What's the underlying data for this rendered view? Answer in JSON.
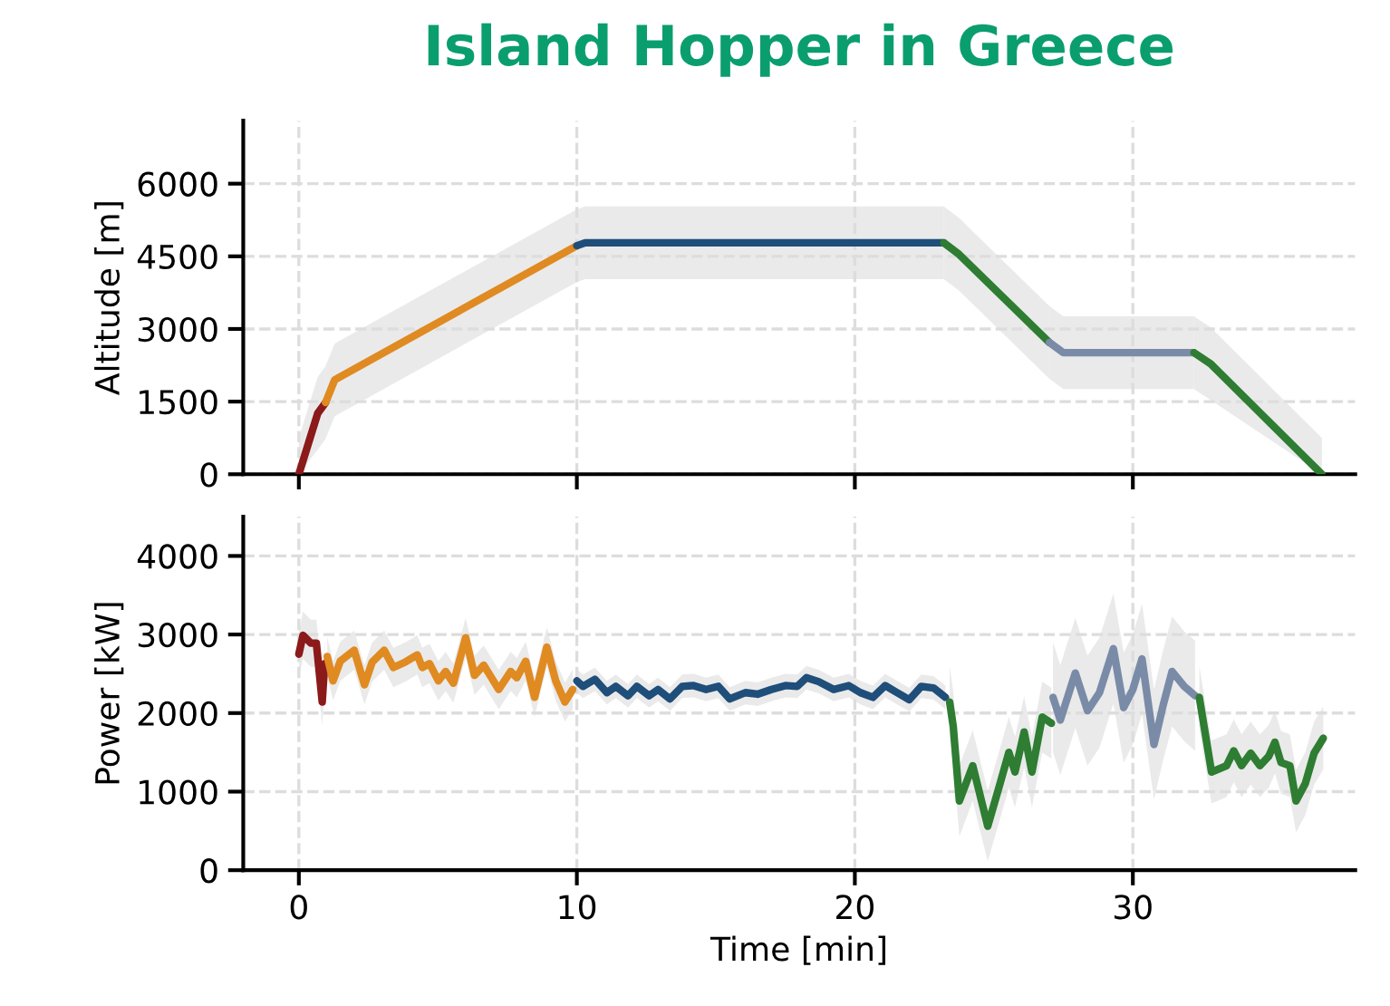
{
  "chart_data": [
    {
      "type": "line",
      "title": "Island Hopper in Greece",
      "ylabel": "Altitude [m]",
      "xlim": [
        -2,
        38
      ],
      "xticks": [
        0,
        10,
        20,
        30
      ],
      "ylim": [
        0,
        7300
      ],
      "yticks": [
        0,
        1500,
        3000,
        4500,
        6000
      ],
      "grid": true,
      "tick_labels": "y",
      "series": [
        {
          "color": "#8b1a1a",
          "x": [
            0,
            0.68,
            0.96
          ],
          "values": [
            0,
            1260,
            1480
          ],
          "lower": [
            0,
            510,
            730
          ],
          "upper": [
            750,
            2010,
            2230
          ]
        },
        {
          "color": "#e08a22",
          "x": [
            0.96,
            1.29,
            10
          ],
          "values": [
            1480,
            1950,
            4720
          ],
          "lower": [
            730,
            1200,
            3970
          ],
          "upper": [
            2230,
            2700,
            5470
          ]
        },
        {
          "color": "#1f4e7a",
          "x": [
            10,
            10.3,
            23.2
          ],
          "values": [
            4720,
            4780,
            4780
          ],
          "lower": [
            3970,
            4030,
            4030
          ],
          "upper": [
            5470,
            5530,
            5530
          ]
        },
        {
          "color": "#2e7d32",
          "x": [
            23.2,
            23.75,
            27.0
          ],
          "values": [
            4780,
            4540,
            2720
          ],
          "lower": [
            4030,
            3790,
            1970
          ],
          "upper": [
            5530,
            5290,
            3470
          ]
        },
        {
          "color": "#7a8ba8",
          "x": [
            27.0,
            27.5,
            32.2
          ],
          "values": [
            2720,
            2510,
            2510
          ],
          "lower": [
            1970,
            1760,
            1760
          ],
          "upper": [
            3470,
            3260,
            3260
          ]
        },
        {
          "color": "#2e7d32",
          "x": [
            32.2,
            32.8,
            36.8
          ],
          "values": [
            2510,
            2280,
            0
          ],
          "lower": [
            1760,
            1530,
            0
          ],
          "upper": [
            3260,
            3030,
            750
          ]
        }
      ]
    },
    {
      "type": "line",
      "xlabel": "Time [min]",
      "ylabel": "Power [kW]",
      "xlim": [
        -2,
        38
      ],
      "xticks": [
        0,
        10,
        20,
        30
      ],
      "ylim": [
        0,
        4500
      ],
      "yticks": [
        0,
        1000,
        2000,
        3000,
        4000
      ],
      "grid": true,
      "series": [
        {
          "color": "#8b1a1a",
          "x": [
            0,
            0.15,
            0.43,
            0.63,
            0.84,
            0.93
          ],
          "values": [
            2750,
            2990,
            2890,
            2890,
            2140,
            2630
          ],
          "lower": [
            2450,
            2690,
            2590,
            2590,
            1840,
            2330
          ],
          "upper": [
            3050,
            3290,
            3190,
            3190,
            2440,
            2930
          ]
        },
        {
          "color": "#e08a22",
          "x": [
            1.02,
            1.23,
            1.49,
            1.99,
            2.36,
            2.64,
            3.07,
            3.4,
            3.83,
            4.26,
            4.44,
            4.7,
            5.02,
            5.28,
            5.56,
            6.0,
            6.32,
            6.65,
            7.19,
            7.62,
            7.84,
            8.16,
            8.48,
            8.92,
            9.24,
            9.57,
            9.85
          ],
          "values": [
            2720,
            2410,
            2660,
            2800,
            2360,
            2650,
            2800,
            2580,
            2650,
            2740,
            2580,
            2630,
            2410,
            2530,
            2380,
            2960,
            2480,
            2610,
            2300,
            2530,
            2450,
            2660,
            2200,
            2840,
            2410,
            2140,
            2300
          ],
          "lower": [
            2470,
            2160,
            2410,
            2550,
            2110,
            2400,
            2550,
            2330,
            2400,
            2490,
            2330,
            2380,
            2160,
            2280,
            2130,
            2710,
            2230,
            2360,
            2050,
            2280,
            2200,
            2410,
            1950,
            2590,
            2160,
            1890,
            2050
          ],
          "upper": [
            2970,
            2660,
            2910,
            3050,
            2610,
            2900,
            3050,
            2830,
            2900,
            2990,
            2830,
            2880,
            2660,
            2780,
            2630,
            3210,
            2730,
            2860,
            2550,
            2780,
            2700,
            2910,
            2450,
            3090,
            2660,
            2390,
            2550
          ]
        },
        {
          "color": "#1f4e7a",
          "x": [
            10.0,
            10.22,
            10.65,
            11.08,
            11.4,
            11.84,
            12.16,
            12.6,
            12.92,
            13.35,
            13.79,
            14.2,
            14.65,
            15.09,
            15.5,
            16.06,
            16.5,
            17.0,
            17.5,
            17.93,
            18.26,
            18.7,
            19.24,
            19.78,
            20.2,
            20.65,
            21.09,
            21.52,
            21.96,
            22.39,
            22.83,
            23.26
          ],
          "values": [
            2410,
            2340,
            2430,
            2260,
            2340,
            2220,
            2340,
            2220,
            2300,
            2180,
            2340,
            2350,
            2300,
            2340,
            2180,
            2260,
            2240,
            2300,
            2350,
            2340,
            2450,
            2400,
            2300,
            2350,
            2260,
            2200,
            2350,
            2260,
            2170,
            2340,
            2320,
            2200
          ],
          "lower": [
            2260,
            2190,
            2280,
            2110,
            2190,
            2070,
            2190,
            2070,
            2150,
            2030,
            2190,
            2200,
            2150,
            2190,
            2030,
            2110,
            2090,
            2150,
            2200,
            2190,
            2300,
            2250,
            2150,
            2200,
            2110,
            2050,
            2200,
            2110,
            2020,
            2190,
            2170,
            2050
          ],
          "upper": [
            2560,
            2490,
            2580,
            2410,
            2490,
            2370,
            2490,
            2370,
            2450,
            2330,
            2490,
            2500,
            2450,
            2490,
            2330,
            2410,
            2390,
            2450,
            2500,
            2490,
            2600,
            2550,
            2450,
            2500,
            2410,
            2350,
            2500,
            2410,
            2320,
            2490,
            2470,
            2350
          ]
        },
        {
          "color": "#2e7d32",
          "x": [
            23.41,
            23.54,
            23.76,
            24.24,
            24.78,
            25.22,
            25.54,
            25.76,
            26.09,
            26.37,
            26.74,
            27.07
          ],
          "values": [
            2140,
            1830,
            880,
            1330,
            560,
            1100,
            1500,
            1250,
            1760,
            1250,
            1950,
            1870
          ],
          "lower": [
            1690,
            1380,
            430,
            880,
            110,
            650,
            1050,
            800,
            1310,
            800,
            1500,
            1420
          ],
          "upper": [
            2590,
            2280,
            1330,
            1780,
            1010,
            1550,
            1950,
            1700,
            2210,
            1700,
            2400,
            2320
          ]
        },
        {
          "color": "#7a8ba8",
          "x": [
            27.13,
            27.39,
            27.93,
            28.37,
            28.8,
            29.3,
            29.67,
            30.0,
            30.33,
            30.76,
            31.09,
            31.41,
            31.85,
            32.24
          ],
          "values": [
            2200,
            1910,
            2510,
            2030,
            2260,
            2820,
            2070,
            2300,
            2690,
            1600,
            2100,
            2530,
            2340,
            2220
          ],
          "lower": [
            1500,
            1210,
            1810,
            1330,
            1560,
            2120,
            1370,
            1600,
            1990,
            900,
            1400,
            1830,
            1640,
            1520
          ],
          "upper": [
            2900,
            2610,
            3210,
            2730,
            2960,
            3520,
            2770,
            3000,
            3390,
            2300,
            2800,
            3230,
            3040,
            2920
          ]
        },
        {
          "color": "#2e7d32",
          "x": [
            32.39,
            32.83,
            33.37,
            33.63,
            33.91,
            34.24,
            34.57,
            34.89,
            35.11,
            35.33,
            35.65,
            35.87,
            36.2,
            36.52,
            36.85
          ],
          "values": [
            2200,
            1250,
            1330,
            1520,
            1330,
            1490,
            1330,
            1450,
            1630,
            1370,
            1330,
            880,
            1100,
            1490,
            1680
          ],
          "lower": [
            1800,
            850,
            930,
            1120,
            930,
            1090,
            930,
            1050,
            1230,
            970,
            930,
            480,
            700,
            1090,
            1280
          ],
          "upper": [
            2600,
            1650,
            1730,
            1920,
            1730,
            1890,
            1730,
            1850,
            2030,
            1770,
            1730,
            1280,
            1500,
            1890,
            2080
          ]
        }
      ]
    }
  ]
}
